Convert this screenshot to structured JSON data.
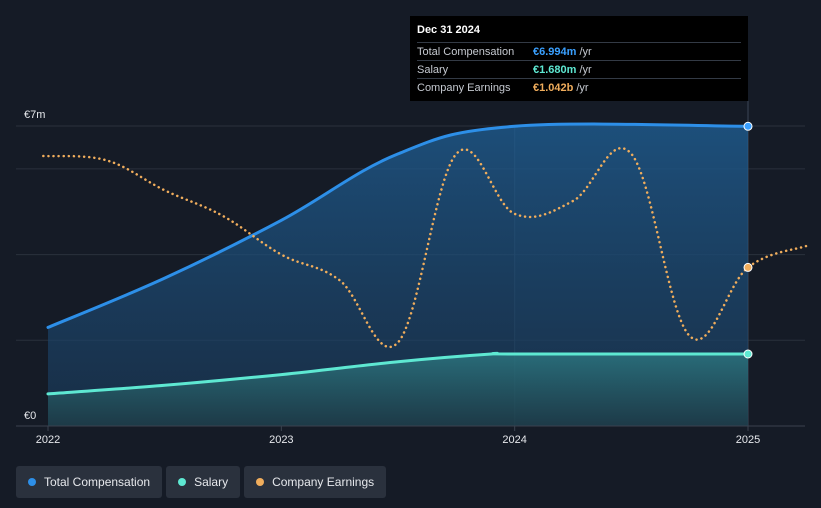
{
  "tooltip": {
    "date": "Dec 31 2024",
    "rows": [
      {
        "name": "Total Compensation",
        "value": "€6.994m",
        "unit": "/yr",
        "color": "#3aa0ff"
      },
      {
        "name": "Salary",
        "value": "€1.680m",
        "unit": "/yr",
        "color": "#5ee8d2"
      },
      {
        "name": "Company Earnings",
        "value": "€1.042b",
        "unit": "/yr",
        "color": "#f0ad5c"
      }
    ]
  },
  "legend": [
    {
      "label": "Total Compensation",
      "color": "#2d8fe8"
    },
    {
      "label": "Salary",
      "color": "#5ee8d2"
    },
    {
      "label": "Company Earnings",
      "color": "#f0ad5c"
    }
  ],
  "chart_data": {
    "type": "line",
    "x_ticks": [
      "2022",
      "2023",
      "2024",
      "2025"
    ],
    "y_ticks": [
      {
        "value": 0,
        "label": "€0"
      },
      {
        "value": 7,
        "label": "€7m"
      }
    ],
    "ylim": [
      0,
      7
    ],
    "series": [
      {
        "name": "Total Compensation",
        "style": "area",
        "color": "#2d8fe8",
        "points": [
          [
            2022.0,
            2.3
          ],
          [
            2022.5,
            3.45
          ],
          [
            2023.0,
            4.8
          ],
          [
            2023.5,
            6.35
          ],
          [
            2024.0,
            6.994
          ],
          [
            2025.0,
            6.994
          ]
        ]
      },
      {
        "name": "Salary",
        "style": "area",
        "color": "#5ee8d2",
        "points": [
          [
            2022.0,
            0.75
          ],
          [
            2022.5,
            0.95
          ],
          [
            2023.0,
            1.2
          ],
          [
            2023.5,
            1.5
          ],
          [
            2023.9,
            1.68
          ],
          [
            2024.0,
            1.68
          ],
          [
            2025.0,
            1.68
          ]
        ]
      },
      {
        "name": "Company Earnings",
        "style": "dotted",
        "color": "#f0ad5c",
        "points": [
          [
            2021.98,
            6.3
          ],
          [
            2022.25,
            6.2
          ],
          [
            2022.5,
            5.5
          ],
          [
            2022.75,
            4.9
          ],
          [
            2023.0,
            4.0
          ],
          [
            2023.25,
            3.4
          ],
          [
            2023.5,
            1.95
          ],
          [
            2023.75,
            6.35
          ],
          [
            2024.0,
            4.95
          ],
          [
            2024.25,
            5.25
          ],
          [
            2024.5,
            6.35
          ],
          [
            2024.75,
            2.1
          ],
          [
            2025.0,
            3.7
          ],
          [
            2025.25,
            4.2
          ]
        ]
      }
    ],
    "highlight_x": 2025.0
  }
}
